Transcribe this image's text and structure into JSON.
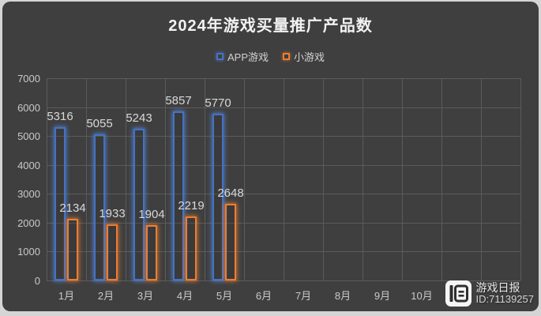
{
  "title": "2024年游戏买量推广产品数",
  "chart_data": {
    "type": "bar",
    "title": "2024年游戏买量推广产品数",
    "categories": [
      "1月",
      "2月",
      "3月",
      "4月",
      "5月"
    ],
    "series": [
      {
        "name": "APP游戏",
        "color": "#4472C4",
        "glow": "rgba(85,140,235,0.75)",
        "values": [
          5316,
          5055,
          5243,
          5857,
          5770
        ]
      },
      {
        "name": "小游戏",
        "color": "#ED7D31",
        "glow": "rgba(240,130,50,0.75)",
        "values": [
          2134,
          1933,
          1904,
          2219,
          2648
        ]
      }
    ],
    "x_tick_labels": [
      "1月",
      "2月",
      "3月",
      "4月",
      "5月",
      "6月",
      "7月",
      "8月",
      "9月",
      "10月"
    ],
    "y_ticks": [
      0,
      1000,
      2000,
      3000,
      4000,
      5000,
      6000,
      7000
    ],
    "ylim": [
      0,
      7000
    ],
    "grid": true,
    "legend_position": "top",
    "layout": {
      "total_columns": 12
    }
  },
  "watermark": {
    "brand": "游戏日报",
    "id": "ID:71139257"
  },
  "colors": {
    "background": "#3F3F3F",
    "frame": "#D6D5D6",
    "grid": "#5B5B5B",
    "axis_text": "#C9C9C9",
    "label_text": "#D9D9D9",
    "title_text": "#F2F2F2"
  }
}
